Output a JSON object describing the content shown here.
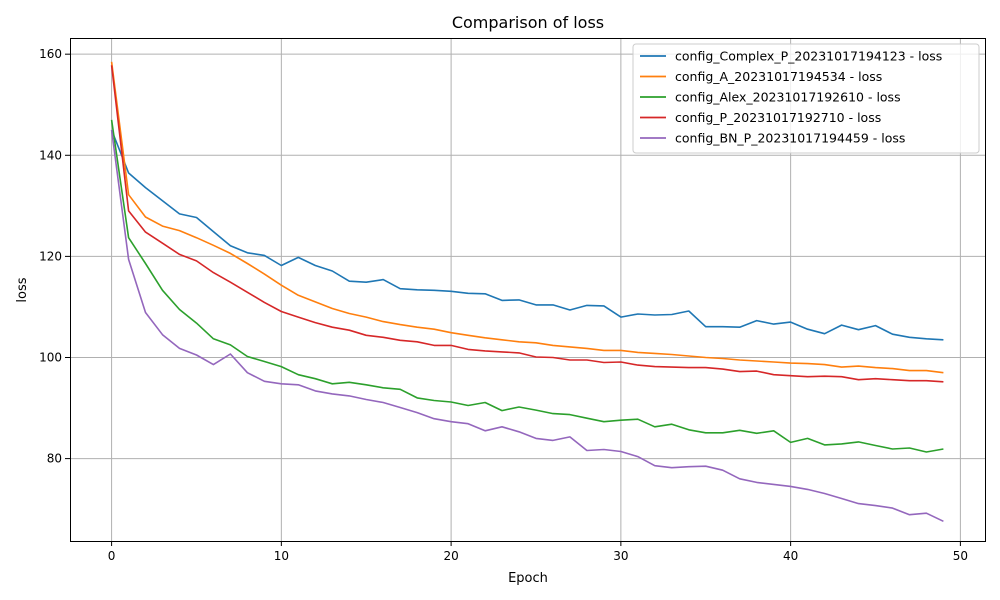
{
  "chart_data": {
    "type": "line",
    "title": "Comparison of loss",
    "xlabel": "Epoch",
    "ylabel": "loss",
    "xlim": [
      -2.45,
      51.45
    ],
    "ylim": [
      63.7,
      163.2
    ],
    "xticks": [
      0,
      10,
      20,
      30,
      40,
      50
    ],
    "yticks": [
      80,
      100,
      120,
      140,
      160
    ],
    "grid": true,
    "legend_position": "top-right",
    "x": [
      0,
      1,
      2,
      3,
      4,
      5,
      6,
      7,
      8,
      9,
      10,
      11,
      12,
      13,
      14,
      15,
      16,
      17,
      18,
      19,
      20,
      21,
      22,
      23,
      24,
      25,
      26,
      27,
      28,
      29,
      30,
      31,
      32,
      33,
      34,
      35,
      36,
      37,
      38,
      39,
      40,
      41,
      42,
      43,
      44,
      45,
      46,
      47,
      48,
      49
    ],
    "series": [
      {
        "name": "config_Complex_P_20231017194123 - loss",
        "color": "#1f77b4",
        "values": [
          145.0,
          136.5,
          133.6,
          131.0,
          128.4,
          127.7,
          124.9,
          122.1,
          120.7,
          120.2,
          118.2,
          119.8,
          118.2,
          117.1,
          115.1,
          114.9,
          115.4,
          113.6,
          113.4,
          113.3,
          113.1,
          112.7,
          112.6,
          111.3,
          111.4,
          110.4,
          110.4,
          109.4,
          110.3,
          110.2,
          108.0,
          108.6,
          108.4,
          108.5,
          109.2,
          106.1,
          106.1,
          106.0,
          107.3,
          106.6,
          107.0,
          105.6,
          104.7,
          106.4,
          105.5,
          106.3,
          104.6,
          104.0,
          103.7,
          103.5
        ]
      },
      {
        "name": "config_A_20231017194534 - loss",
        "color": "#ff7f0e",
        "values": [
          158.5,
          132.2,
          127.8,
          126.0,
          125.1,
          123.7,
          122.2,
          120.6,
          118.6,
          116.5,
          114.3,
          112.3,
          111.0,
          109.7,
          108.7,
          108.0,
          107.1,
          106.5,
          106.0,
          105.6,
          104.9,
          104.4,
          103.9,
          103.5,
          103.1,
          102.9,
          102.4,
          102.1,
          101.8,
          101.4,
          101.4,
          101.0,
          100.8,
          100.6,
          100.3,
          100.0,
          99.8,
          99.5,
          99.3,
          99.1,
          98.9,
          98.8,
          98.6,
          98.1,
          98.3,
          98.0,
          97.8,
          97.4,
          97.4,
          97.0
        ]
      },
      {
        "name": "config_Alex_20231017192610 - loss",
        "color": "#2ca02c",
        "values": [
          147.0,
          123.7,
          118.6,
          113.3,
          109.5,
          106.8,
          103.7,
          102.5,
          100.2,
          99.2,
          98.2,
          96.6,
          95.8,
          94.8,
          95.1,
          94.6,
          94.0,
          93.7,
          92.0,
          91.5,
          91.2,
          90.5,
          91.1,
          89.5,
          90.2,
          89.6,
          88.9,
          88.7,
          88.0,
          87.3,
          87.6,
          87.8,
          86.3,
          86.8,
          85.7,
          85.1,
          85.1,
          85.6,
          85.0,
          85.5,
          83.2,
          84.0,
          82.7,
          82.9,
          83.3,
          82.6,
          81.9,
          82.1,
          81.3,
          81.9
        ]
      },
      {
        "name": "config_P_20231017192710 - loss",
        "color": "#d62728",
        "values": [
          157.8,
          129.0,
          124.8,
          122.6,
          120.4,
          119.1,
          116.8,
          114.9,
          112.9,
          110.9,
          109.1,
          108.0,
          106.9,
          106.0,
          105.4,
          104.4,
          104.0,
          103.4,
          103.1,
          102.4,
          102.4,
          101.6,
          101.3,
          101.1,
          100.9,
          100.1,
          100.0,
          99.5,
          99.5,
          99.0,
          99.1,
          98.5,
          98.2,
          98.1,
          98.0,
          98.0,
          97.7,
          97.2,
          97.3,
          96.6,
          96.4,
          96.2,
          96.3,
          96.2,
          95.6,
          95.8,
          95.6,
          95.4,
          95.4,
          95.2
        ]
      },
      {
        "name": "config_BN_P_20231017194459 - loss",
        "color": "#9467bd",
        "values": [
          145.0,
          119.4,
          108.9,
          104.5,
          101.8,
          100.5,
          98.6,
          100.7,
          97.0,
          95.3,
          94.8,
          94.6,
          93.4,
          92.8,
          92.4,
          91.7,
          91.1,
          90.1,
          89.1,
          87.9,
          87.3,
          86.9,
          85.5,
          86.3,
          85.3,
          84.0,
          83.6,
          84.3,
          81.6,
          81.8,
          81.4,
          80.4,
          78.6,
          78.2,
          78.4,
          78.5,
          77.7,
          76.0,
          75.3,
          74.9,
          74.5,
          73.9,
          73.1,
          72.1,
          71.1,
          70.7,
          70.2,
          68.9,
          69.2,
          67.6
        ]
      }
    ]
  }
}
